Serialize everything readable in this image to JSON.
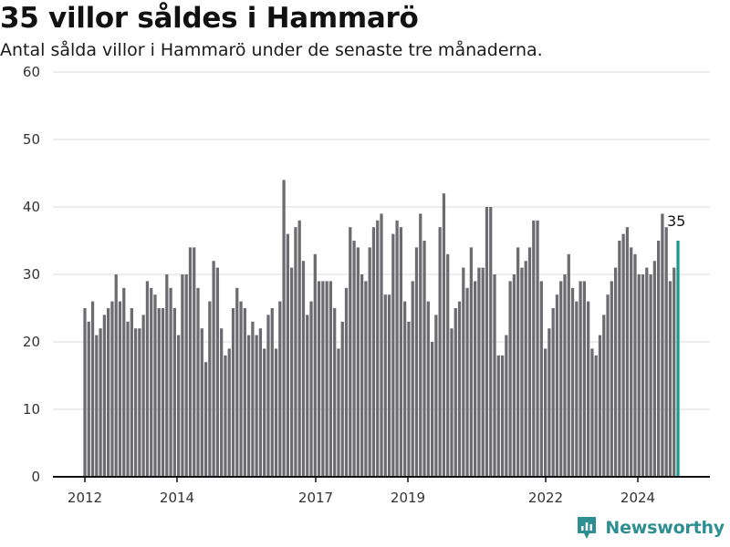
{
  "title": "35 villor såldes i Hammarö",
  "subtitle": "Antal sålda villor i Hammarö under de senaste tre månaderna.",
  "brand": {
    "name": "Newsworthy",
    "icon": "newsworthy-logo-icon"
  },
  "colors": {
    "bar": "#6b6b70",
    "highlight": "#1a9a8f",
    "grid": "#dddddd",
    "axis": "#111111",
    "brand": "#2e8f92"
  },
  "chart_data": {
    "type": "bar",
    "title": "35 villor såldes i Hammarö",
    "subtitle": "Antal sålda villor i Hammarö under de senaste tre månaderna.",
    "xlabel": "",
    "ylabel": "",
    "ylim": [
      0,
      60
    ],
    "yticks": [
      0,
      10,
      20,
      30,
      40,
      50,
      60
    ],
    "xticks": [
      "2012",
      "2014",
      "2017",
      "2019",
      "2022",
      "2024"
    ],
    "grid": true,
    "highlight_label": "35",
    "periods": "monthly rolling three-month totals from 2012 to 2024",
    "values": [
      25,
      23,
      26,
      21,
      22,
      24,
      25,
      26,
      30,
      26,
      28,
      23,
      25,
      22,
      22,
      24,
      29,
      28,
      27,
      25,
      25,
      30,
      28,
      25,
      21,
      30,
      30,
      34,
      34,
      28,
      22,
      17,
      26,
      32,
      31,
      22,
      18,
      19,
      25,
      28,
      26,
      25,
      21,
      23,
      21,
      22,
      19,
      24,
      25,
      19,
      26,
      44,
      36,
      31,
      37,
      38,
      32,
      24,
      26,
      33,
      29,
      29,
      29,
      29,
      25,
      19,
      23,
      28,
      37,
      35,
      34,
      30,
      29,
      34,
      37,
      38,
      39,
      27,
      27,
      36,
      38,
      37,
      26,
      23,
      29,
      34,
      39,
      35,
      26,
      20,
      24,
      37,
      42,
      33,
      22,
      25,
      26,
      31,
      28,
      34,
      29,
      31,
      31,
      40,
      40,
      30,
      18,
      18,
      21,
      29,
      30,
      34,
      31,
      32,
      34,
      38,
      38,
      29,
      19,
      22,
      25,
      27,
      29,
      30,
      33,
      28,
      26,
      29,
      29,
      26,
      19,
      18,
      21,
      24,
      27,
      29,
      31,
      35,
      36,
      37,
      34,
      33,
      30,
      30,
      31,
      30,
      32,
      35,
      39,
      37,
      29,
      31,
      35
    ]
  }
}
